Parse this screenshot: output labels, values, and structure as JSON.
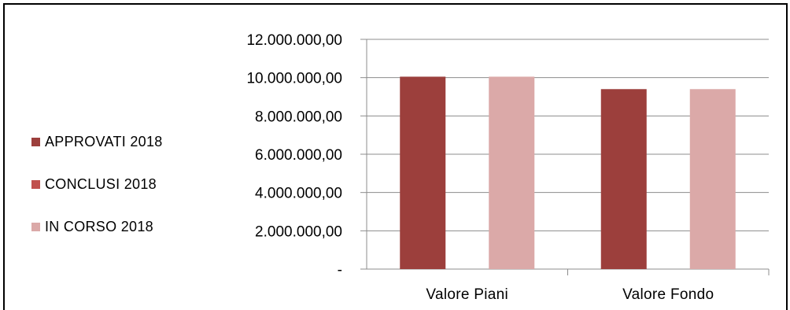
{
  "chart_data": {
    "type": "bar",
    "categories": [
      "Valore Piani",
      "Valore Fondo"
    ],
    "series": [
      {
        "name": "APPROVATI 2018",
        "color": "#9c3f3c",
        "values": [
          10050000,
          9400000
        ]
      },
      {
        "name": "CONCLUSI 2018",
        "color": "#c0504d",
        "values": [
          0,
          0
        ]
      },
      {
        "name": "IN CORSO 2018",
        "color": "#dba9a8",
        "values": [
          10050000,
          9400000
        ]
      }
    ],
    "ylim": [
      0,
      12000000
    ],
    "yticks": [
      0,
      2000000,
      4000000,
      6000000,
      8000000,
      10000000,
      12000000
    ],
    "ytick_labels": [
      "-",
      "2.000.000,00",
      "4.000.000,00",
      "6.000.000,00",
      "8.000.000,00",
      "10.000.000,00",
      "12.000.000,00"
    ],
    "grid": true,
    "legend_position": "left",
    "title": "",
    "xlabel": "",
    "ylabel": ""
  }
}
